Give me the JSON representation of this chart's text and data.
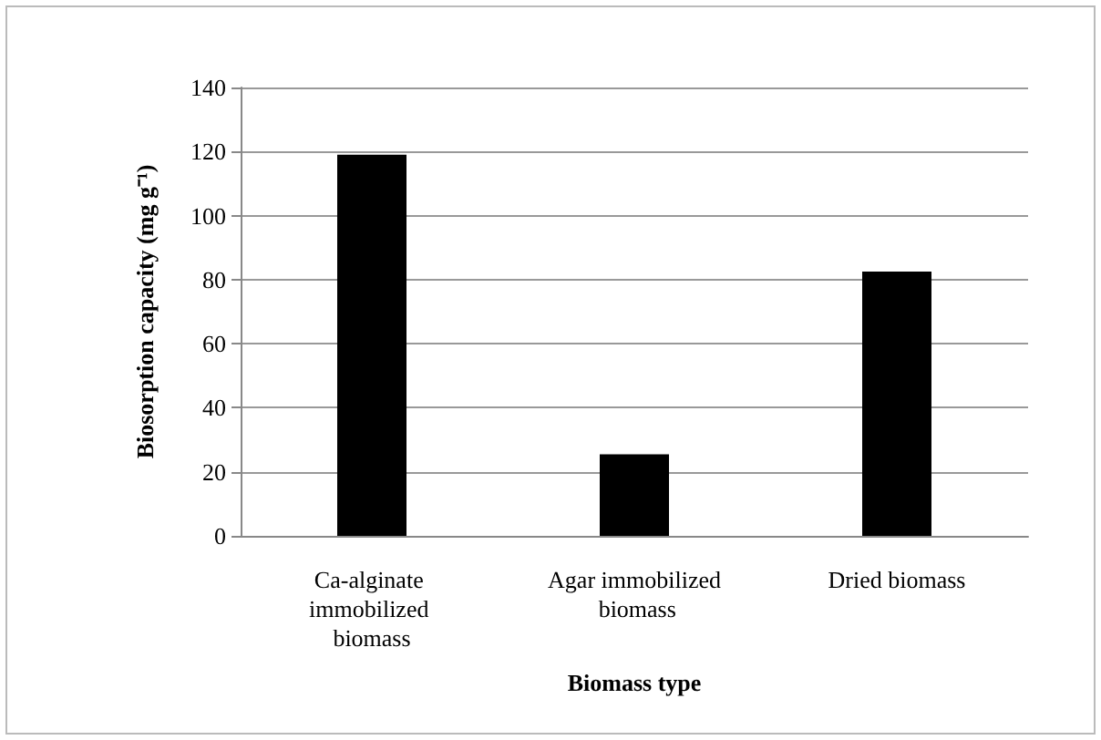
{
  "chart_data": {
    "type": "bar",
    "xlabel": "Biomass type",
    "ylabel": "Biosorption capacity (mg g⁻¹)",
    "categories": [
      "Ca-alginate immobilized biomass",
      "Agar immobilized biomass",
      "Dried biomass"
    ],
    "values": [
      119,
      25.5,
      82.5
    ],
    "color": "#000000",
    "ylim": [
      0,
      140
    ],
    "yticks": [
      0,
      20,
      40,
      60,
      80,
      100,
      120,
      140
    ],
    "grid": "y"
  }
}
